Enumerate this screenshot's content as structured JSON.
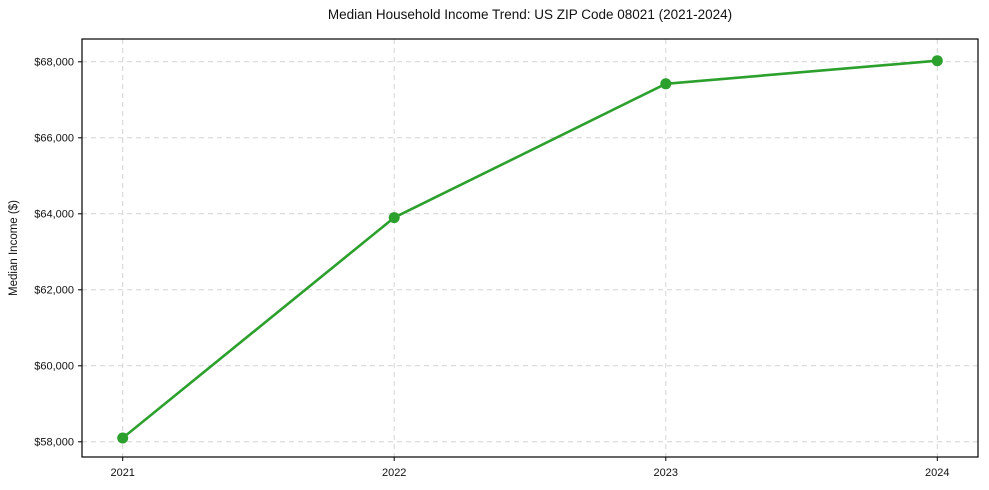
{
  "chart_data": {
    "type": "line",
    "title": "Median Household Income Trend: US ZIP Code 08021 (2021-2024)",
    "xlabel": "",
    "ylabel": "Median Income ($)",
    "x": [
      2021,
      2022,
      2023,
      2024
    ],
    "series": [
      {
        "name": "Median Household Income",
        "values": [
          58100,
          63900,
          67420,
          68030
        ],
        "color": "#2ca02c",
        "marker": "circle",
        "marker_radius": 5.5,
        "line_width": 2.6
      }
    ],
    "xticks": [
      {
        "value": 2021,
        "label": "2021"
      },
      {
        "value": 2022,
        "label": "2022"
      },
      {
        "value": 2023,
        "label": "2023"
      },
      {
        "value": 2024,
        "label": "2024"
      }
    ],
    "yticks": [
      {
        "value": 58000,
        "label": "$58,000"
      },
      {
        "value": 60000,
        "label": "$60,000"
      },
      {
        "value": 62000,
        "label": "$62,000"
      },
      {
        "value": 64000,
        "label": "$64,000"
      },
      {
        "value": 66000,
        "label": "$66,000"
      },
      {
        "value": 68000,
        "label": "$68,000"
      }
    ],
    "xlim": [
      2020.85,
      2024.15
    ],
    "ylim": [
      57600,
      68600
    ],
    "grid": true,
    "grid_style": "dashed",
    "legend": "none",
    "colors": {
      "line": "#2ca02c",
      "grid": "#d4d4d4",
      "axis": "#000000",
      "text": "#111111",
      "background": "#ffffff"
    }
  }
}
